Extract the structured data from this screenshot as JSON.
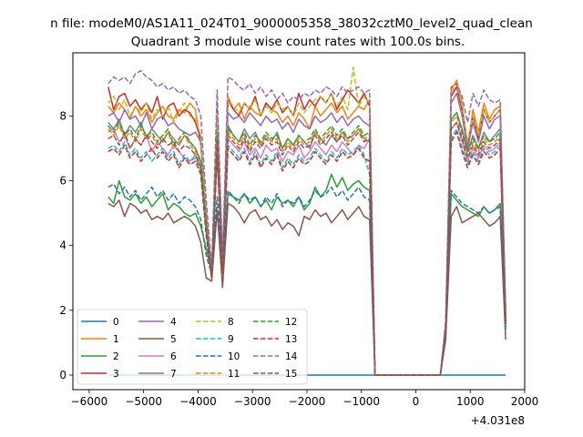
{
  "suptitle": "n file: modeM0/AS1A11_024T01_9000005358_38032cztM0_level2_quad_clean",
  "chart_data": {
    "type": "line",
    "title": "Quadrant 3 module wise count rates with 100.0s bins.",
    "xlabel": "",
    "ylabel": "",
    "x_offset_label": "+4.031e8",
    "xlim": [
      -6300,
      2000
    ],
    "ylim": [
      -0.45,
      9.95
    ],
    "xticks": [
      -6000,
      -5000,
      -4000,
      -3000,
      -2000,
      -1000,
      0,
      1000,
      2000
    ],
    "xtick_labels": [
      "−6000",
      "−5000",
      "−4000",
      "−3000",
      "−2000",
      "−1000",
      "0",
      "1000",
      "2000"
    ],
    "yticks": [
      0,
      2,
      4,
      6,
      8
    ],
    "ytick_labels": [
      "0",
      "2",
      "4",
      "6",
      "8"
    ],
    "grid": false,
    "legend_position": "lower-left",
    "legend_columns": 4,
    "segments": [
      {
        "x_start": -5650,
        "x_end": -850,
        "step": 100
      },
      {
        "x_start": -750,
        "x_end": 450,
        "step": 100
      },
      {
        "x_start": 550,
        "x_end": 1650,
        "step": 100
      }
    ],
    "series": [
      {
        "name": "0",
        "color": "#1f77b4",
        "dash": "solid",
        "seg1": [
          0
        ],
        "seg3": [
          0
        ]
      },
      {
        "name": "1",
        "color": "#ff7f0e",
        "dash": "solid",
        "seg1": [
          8.3,
          8.1,
          8.4,
          8.2,
          7.9,
          8.3,
          8.0,
          8.2,
          7.8,
          8.1,
          8.3,
          8.0,
          7.9,
          8.2,
          8.1,
          8.4,
          8.2,
          7.1,
          5.0,
          3.0,
          8.3,
          3.5,
          8.6,
          8.2,
          8.4,
          7.9,
          8.3,
          8.1,
          8.0,
          8.4,
          8.2,
          8.1,
          7.8,
          8.0,
          7.7,
          8.1,
          7.9,
          7.6,
          8.3,
          8.0,
          8.2,
          8.4,
          8.1,
          8.3,
          7.9,
          8.1,
          8.3,
          8.2,
          8.5
        ],
        "seg3": [
          1.5,
          8.8,
          9.1,
          8.4,
          7.0,
          8.2,
          7.5,
          8.4,
          7.9,
          8.2,
          8.3,
          2.0
        ]
      },
      {
        "name": "2",
        "color": "#2ca02c",
        "dash": "solid",
        "seg1": [
          5.5,
          5.3,
          6.0,
          5.5,
          5.4,
          5.6,
          5.3,
          5.5,
          5.2,
          5.4,
          5.6,
          5.1,
          5.3,
          5.2,
          5.0,
          4.9,
          5.0,
          4.6,
          3.9,
          3.2,
          5.1,
          3.3,
          5.6,
          5.5,
          5.4,
          5.6,
          5.3,
          5.5,
          5.2,
          5.4,
          5.1,
          5.5,
          5.3,
          5.4,
          5.2,
          5.5,
          5.1,
          5.3,
          5.8,
          5.5,
          5.7,
          6.2,
          5.8,
          6.1,
          5.7,
          5.9,
          6.0,
          5.8,
          5.7
        ],
        "seg3": [
          1.3,
          5.6,
          5.4,
          5.2,
          5.1,
          5.0,
          4.9,
          5.2,
          5.0,
          5.1,
          5.3,
          1.5
        ]
      },
      {
        "name": "3",
        "color": "#d62728",
        "dash": "solid",
        "seg1": [
          8.9,
          8.2,
          8.6,
          8.7,
          8.3,
          8.5,
          8.2,
          8.4,
          8.1,
          8.6,
          7.9,
          8.3,
          8.4,
          8.0,
          8.2,
          8.1,
          7.8,
          7.3,
          5.0,
          3.2,
          8.1,
          3.4,
          8.5,
          8.2,
          8.0,
          8.4,
          8.2,
          8.6,
          8.0,
          8.4,
          8.2,
          8.5,
          8.1,
          8.3,
          8.0,
          8.7,
          8.2,
          8.5,
          8.3,
          8.6,
          8.4,
          8.7,
          8.2,
          8.5,
          8.8,
          8.6,
          8.4,
          8.7,
          8.3
        ],
        "seg3": [
          1.4,
          8.6,
          8.9,
          8.2,
          7.1,
          8.0,
          7.3,
          8.2,
          7.8,
          8.0,
          8.2,
          1.8
        ]
      },
      {
        "name": "4",
        "color": "#9467bd",
        "dash": "solid",
        "seg1": [
          8.0,
          8.1,
          7.8,
          8.2,
          7.9,
          8.0,
          7.7,
          8.1,
          7.6,
          7.9,
          8.0,
          7.7,
          7.8,
          7.6,
          7.5,
          7.4,
          7.5,
          7.2,
          5.0,
          3.1,
          7.9,
          3.3,
          8.1,
          7.9,
          8.0,
          7.8,
          8.1,
          7.9,
          7.7,
          8.0,
          7.8,
          7.9,
          7.6,
          7.8,
          7.5,
          7.9,
          7.7,
          7.6,
          8.0,
          7.8,
          7.9,
          8.1,
          7.8,
          8.0,
          7.7,
          7.9,
          8.0,
          7.8,
          7.7
        ],
        "seg3": [
          1.4,
          8.4,
          8.7,
          8.0,
          7.0,
          7.8,
          7.2,
          8.0,
          7.6,
          7.9,
          8.0,
          1.7
        ]
      },
      {
        "name": "5",
        "color": "#8c564b",
        "dash": "solid",
        "seg1": [
          5.3,
          5.2,
          5.4,
          4.9,
          5.3,
          5.2,
          5.0,
          5.1,
          4.8,
          4.9,
          4.8,
          5.0,
          4.7,
          4.8,
          4.9,
          4.8,
          4.6,
          4.1,
          3.0,
          2.9,
          5.1,
          2.7,
          5.3,
          5.2,
          5.0,
          4.7,
          5.0,
          5.1,
          4.8,
          4.9,
          4.6,
          4.8,
          4.5,
          4.7,
          4.6,
          4.3,
          4.9,
          4.8,
          5.1,
          4.9,
          5.0,
          4.7,
          4.9,
          5.1,
          4.8,
          5.0,
          5.2,
          4.9,
          4.8
        ],
        "seg3": [
          1.1,
          4.9,
          5.2,
          4.7,
          4.8,
          4.9,
          5.0,
          4.8,
          4.6,
          4.7,
          4.9,
          1.1
        ]
      },
      {
        "name": "6",
        "color": "#e377c2",
        "dash": "solid",
        "seg1": [
          7.5,
          7.6,
          7.2,
          7.4,
          7.0,
          7.3,
          7.1,
          7.4,
          6.9,
          7.2,
          7.0,
          6.8,
          7.1,
          6.9,
          6.7,
          6.6,
          6.8,
          6.4,
          4.5,
          3.1,
          7.0,
          3.2,
          7.3,
          7.1,
          6.9,
          7.2,
          6.8,
          7.0,
          6.7,
          7.1,
          6.9,
          7.0,
          6.6,
          6.9,
          6.8,
          7.1,
          6.7,
          6.9,
          7.2,
          7.0,
          6.8,
          7.1,
          6.9,
          7.2,
          7.0,
          6.8,
          7.1,
          7.0,
          7.3
        ],
        "seg3": [
          1.5,
          7.6,
          7.8,
          7.2,
          6.6,
          7.0,
          6.7,
          7.1,
          6.9,
          7.0,
          7.2,
          1.6
        ]
      },
      {
        "name": "7",
        "color": "#7f7f7f",
        "dash": "solid",
        "seg1": [
          7.8,
          7.6,
          7.9,
          7.4,
          7.7,
          7.5,
          7.8,
          7.3,
          7.6,
          7.4,
          7.2,
          7.5,
          7.3,
          7.1,
          7.4,
          7.2,
          7.0,
          6.6,
          4.6,
          3.0,
          7.5,
          3.1,
          7.7,
          7.4,
          7.2,
          7.6,
          7.3,
          7.5,
          7.1,
          7.4,
          7.2,
          7.5,
          7.0,
          7.3,
          7.1,
          7.4,
          7.2,
          7.0,
          7.5,
          7.3,
          7.1,
          7.4,
          7.2,
          7.5,
          7.3,
          7.4,
          7.6,
          7.3,
          7.2
        ],
        "seg3": [
          1.4,
          7.9,
          8.1,
          7.6,
          6.9,
          7.4,
          7.0,
          7.5,
          7.2,
          7.4,
          7.6,
          1.7
        ]
      },
      {
        "name": "8",
        "color": "#bcbd22",
        "dash": "dashed",
        "seg1": [
          8.4,
          8.6,
          8.2,
          8.5,
          8.0,
          8.3,
          8.1,
          8.4,
          7.9,
          8.2,
          8.0,
          8.3,
          7.8,
          8.1,
          8.4,
          8.0,
          7.9,
          7.4,
          5.0,
          3.1,
          8.2,
          3.4,
          8.5,
          8.3,
          8.1,
          8.4,
          8.2,
          8.5,
          8.0,
          8.3,
          8.1,
          8.4,
          8.2,
          8.3,
          8.0,
          8.4,
          8.1,
          8.3,
          8.5,
          8.6,
          8.4,
          8.7,
          8.3,
          8.6,
          8.2,
          9.5,
          8.3,
          8.6,
          8.4
        ],
        "seg3": [
          1.6,
          8.7,
          9.0,
          8.3,
          7.2,
          8.0,
          7.4,
          8.2,
          7.8,
          8.0,
          8.2,
          1.8
        ]
      },
      {
        "name": "9",
        "color": "#17becf",
        "dash": "dashed",
        "seg1": [
          7.0,
          7.1,
          6.9,
          7.2,
          6.8,
          7.0,
          6.7,
          6.9,
          6.6,
          6.8,
          7.0,
          6.7,
          6.9,
          6.5,
          6.8,
          6.6,
          6.7,
          6.3,
          4.4,
          3.0,
          6.9,
          3.1,
          7.1,
          6.9,
          6.7,
          7.0,
          6.6,
          6.9,
          6.5,
          6.8,
          6.6,
          6.9,
          6.4,
          6.7,
          6.5,
          6.8,
          6.6,
          6.7,
          7.0,
          6.8,
          6.6,
          6.9,
          6.7,
          7.0,
          6.8,
          6.9,
          7.1,
          6.8,
          6.2
        ],
        "seg3": [
          1.4,
          7.3,
          7.6,
          7.0,
          6.5,
          6.9,
          6.6,
          7.0,
          6.8,
          6.9,
          7.1,
          1.5
        ]
      },
      {
        "name": "10",
        "color": "#1f77b4",
        "dash": "dashed",
        "seg1": [
          5.8,
          5.9,
          5.6,
          5.8,
          5.5,
          5.7,
          5.4,
          5.6,
          5.8,
          5.5,
          5.7,
          5.4,
          5.6,
          5.3,
          5.5,
          5.4,
          5.2,
          4.8,
          3.7,
          3.1,
          5.5,
          3.2,
          5.7,
          5.5,
          5.3,
          5.6,
          5.4,
          5.5,
          5.2,
          5.5,
          5.3,
          5.6,
          5.2,
          5.4,
          5.3,
          5.5,
          5.2,
          5.4,
          5.7,
          5.5,
          5.6,
          5.8,
          5.5,
          5.7,
          5.4,
          5.6,
          5.8,
          5.5,
          5.4
        ],
        "seg3": [
          1.3,
          5.7,
          5.5,
          5.3,
          5.2,
          5.1,
          5.0,
          5.2,
          5.0,
          5.1,
          5.2,
          1.4
        ]
      },
      {
        "name": "11",
        "color": "#ff7f0e",
        "dash": "dashed",
        "seg1": [
          7.6,
          7.4,
          7.7,
          7.3,
          7.5,
          7.2,
          7.6,
          7.3,
          7.4,
          7.1,
          7.3,
          7.5,
          7.0,
          7.2,
          7.4,
          7.1,
          6.9,
          6.5,
          4.6,
          3.0,
          7.3,
          3.2,
          7.5,
          7.3,
          7.1,
          7.4,
          7.0,
          7.3,
          7.1,
          7.4,
          7.2,
          7.3,
          6.9,
          7.2,
          7.0,
          7.3,
          7.1,
          7.2,
          7.5,
          7.2,
          7.4,
          7.6,
          7.3,
          7.5,
          7.2,
          7.4,
          7.6,
          7.3,
          7.4
        ],
        "seg3": [
          1.5,
          7.8,
          8.0,
          7.4,
          6.8,
          7.2,
          6.9,
          7.3,
          7.1,
          7.2,
          7.4,
          1.6
        ]
      },
      {
        "name": "12",
        "color": "#2ca02c",
        "dash": "dashed",
        "seg1": [
          7.7,
          7.5,
          7.8,
          7.4,
          7.6,
          7.3,
          7.7,
          7.4,
          7.5,
          7.2,
          7.4,
          7.6,
          7.1,
          7.3,
          7.5,
          7.2,
          7.0,
          6.6,
          4.7,
          3.0,
          7.4,
          3.2,
          7.6,
          7.4,
          7.2,
          7.5,
          7.1,
          7.4,
          7.2,
          7.5,
          7.3,
          7.4,
          7.0,
          7.3,
          7.1,
          7.4,
          7.2,
          7.3,
          7.6,
          7.3,
          7.5,
          7.7,
          7.4,
          7.6,
          7.3,
          7.5,
          7.7,
          7.4,
          7.5
        ],
        "seg3": [
          1.5,
          7.9,
          8.1,
          7.5,
          6.9,
          7.3,
          7.0,
          7.4,
          7.2,
          7.3,
          7.5,
          1.6
        ]
      },
      {
        "name": "13",
        "color": "#d62728",
        "dash": "dashed",
        "seg1": [
          6.9,
          7.0,
          6.8,
          7.1,
          6.7,
          6.9,
          6.6,
          6.8,
          7.0,
          6.7,
          6.9,
          6.6,
          6.8,
          6.4,
          6.7,
          6.5,
          6.6,
          6.2,
          4.3,
          3.0,
          6.8,
          3.1,
          7.0,
          6.8,
          6.6,
          6.9,
          6.5,
          6.8,
          6.4,
          6.7,
          6.5,
          6.8,
          6.3,
          6.6,
          6.4,
          6.7,
          6.5,
          6.6,
          6.9,
          6.7,
          6.5,
          6.8,
          6.6,
          6.9,
          6.7,
          6.8,
          7.0,
          6.7,
          6.6
        ],
        "seg3": [
          1.4,
          7.2,
          7.5,
          6.9,
          6.4,
          6.8,
          6.5,
          6.9,
          6.7,
          6.8,
          7.0,
          1.5
        ]
      },
      {
        "name": "14",
        "color": "#9467bd",
        "dash": "dashed",
        "seg1": [
          9.0,
          9.2,
          9.1,
          9.2,
          9.0,
          9.3,
          9.4,
          9.2,
          9.1,
          8.9,
          9.0,
          8.8,
          8.9,
          8.7,
          8.8,
          8.6,
          8.5,
          8.0,
          5.4,
          3.3,
          8.8,
          3.6,
          9.2,
          9.1,
          8.9,
          8.8,
          9.0,
          8.7,
          8.9,
          8.6,
          8.8,
          8.5,
          8.7,
          8.4,
          8.6,
          8.5,
          8.7,
          8.6,
          8.8,
          8.7,
          8.9,
          8.8,
          8.6,
          8.9,
          8.7,
          8.8,
          8.9,
          8.7,
          8.8
        ],
        "seg3": [
          1.7,
          8.9,
          9.0,
          8.6,
          7.8,
          8.7,
          8.3,
          8.8,
          8.5,
          8.4,
          8.5,
          2.0
        ]
      },
      {
        "name": "15",
        "color": "#8c564b",
        "dash": "dashed",
        "seg1": [
          7.3,
          7.4,
          7.1,
          7.5,
          7.0,
          7.3,
          7.1,
          7.4,
          7.2,
          7.0,
          7.3,
          7.1,
          7.2,
          6.9,
          7.1,
          7.0,
          6.8,
          6.4,
          4.5,
          3.1,
          7.2,
          3.2,
          7.4,
          7.2,
          7.0,
          7.3,
          6.9,
          7.2,
          7.0,
          7.3,
          7.1,
          7.2,
          6.8,
          7.1,
          6.9,
          7.2,
          7.0,
          7.1,
          7.4,
          7.1,
          7.3,
          7.5,
          7.2,
          7.4,
          7.1,
          7.3,
          7.5,
          7.2,
          7.3
        ],
        "seg3": [
          1.4,
          7.6,
          7.8,
          7.3,
          6.7,
          7.1,
          6.8,
          7.2,
          7.0,
          7.1,
          7.3,
          1.6
        ]
      }
    ]
  }
}
